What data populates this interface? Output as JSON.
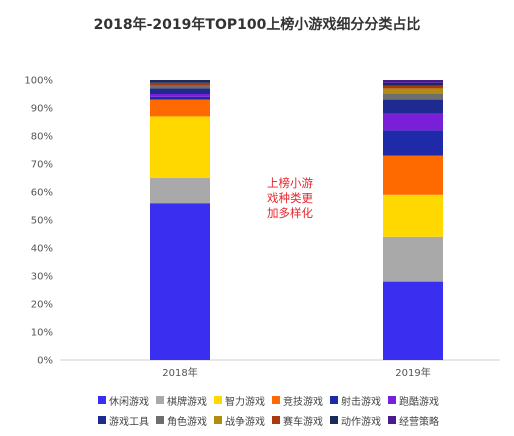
{
  "title": "2018年-2019年TOP100上榜小游戏细分分类占比",
  "chart_data": {
    "type": "bar",
    "stacked": true,
    "categories": [
      "2018年",
      "2019年"
    ],
    "ylim": [
      0,
      100
    ],
    "yticks": [
      "0%",
      "10%",
      "20%",
      "30%",
      "40%",
      "50%",
      "60%",
      "70%",
      "80%",
      "90%",
      "100%"
    ],
    "series": [
      {
        "name": "休闲游戏",
        "color": "#3a2ff0",
        "values": [
          56,
          28
        ]
      },
      {
        "name": "棋牌游戏",
        "color": "#a9a9a9",
        "values": [
          9,
          16
        ]
      },
      {
        "name": "智力游戏",
        "color": "#ffd800",
        "values": [
          22,
          15
        ]
      },
      {
        "name": "竞技游戏",
        "color": "#ff6a00",
        "values": [
          6,
          14
        ]
      },
      {
        "name": "射击游戏",
        "color": "#1f2aa8",
        "values": [
          1,
          9
        ]
      },
      {
        "name": "跑酷游戏",
        "color": "#7a1fd8",
        "values": [
          1,
          6
        ]
      },
      {
        "name": "游戏工具",
        "color": "#1e2a8f",
        "values": [
          2,
          5
        ]
      },
      {
        "name": "角色游戏",
        "color": "#6e6e6e",
        "values": [
          1,
          2
        ]
      },
      {
        "name": "战争游戏",
        "color": "#b08d10",
        "values": [
          0,
          2
        ]
      },
      {
        "name": "赛车游戏",
        "color": "#a83a10",
        "values": [
          1,
          1
        ]
      },
      {
        "name": "动作游戏",
        "color": "#1a2a5e",
        "values": [
          1,
          1
        ]
      },
      {
        "name": "经营策略",
        "color": "#4a1a90",
        "values": [
          0,
          1
        ]
      }
    ],
    "annotation": [
      "上榜小游",
      "戏种类更",
      "加多样化"
    ],
    "grid": false,
    "legend_position": "bottom"
  }
}
